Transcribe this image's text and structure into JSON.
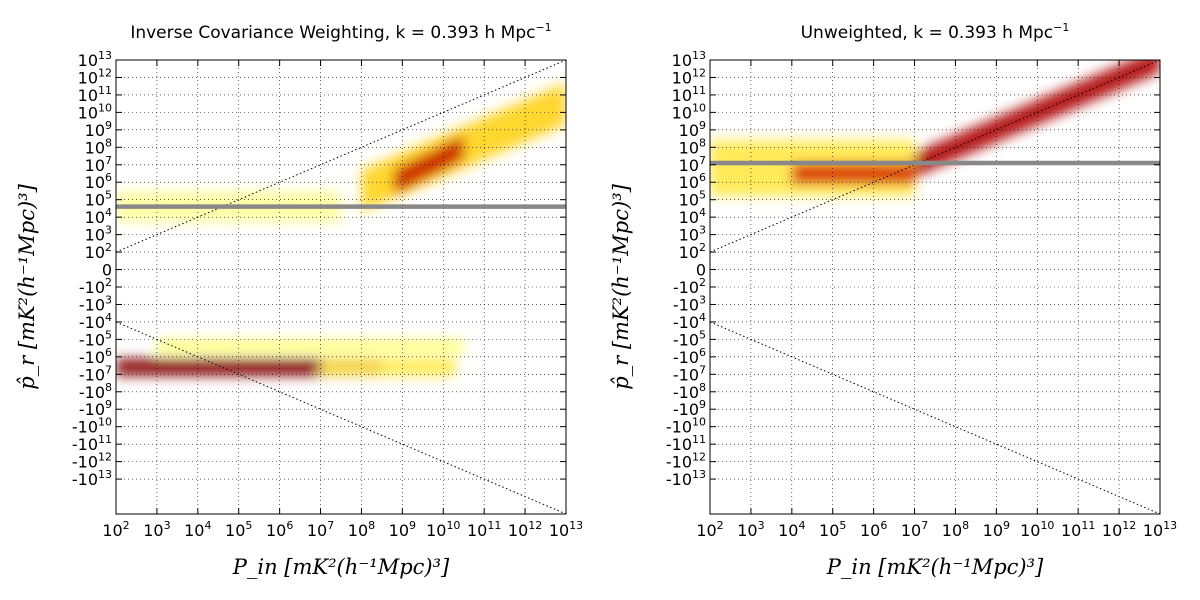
{
  "chart_data": [
    {
      "type": "heatmap",
      "title": "Inverse Covariance Weighting, k = 0.393 h Mpc",
      "title_sup": "−1",
      "xlabel": "P_in [mK²(h⁻¹Mpc)³]",
      "ylabel": "p̂_r [mK²(h⁻¹Mpc)³]",
      "x_ticks": [
        "10^2",
        "10^3",
        "10^4",
        "10^5",
        "10^6",
        "10^7",
        "10^8",
        "10^9",
        "10^10",
        "10^11",
        "10^12",
        "10^13"
      ],
      "y_ticks": [
        "10^13",
        "10^12",
        "10^11",
        "10^10",
        "10^9",
        "10^8",
        "10^7",
        "10^6",
        "10^5",
        "10^4",
        "10^3",
        "10^2",
        "0",
        "-10^2",
        "-10^3",
        "-10^4",
        "-10^5",
        "-10^6",
        "-10^7",
        "-10^8",
        "-10^9",
        "-10^10",
        "-10^11",
        "-10^12",
        "-10^13"
      ],
      "xlim_log10": [
        2,
        13
      ],
      "ylim_symlog10": [
        -13,
        13
      ],
      "grid": true,
      "noise_line_y": "4.6",
      "density": [
        {
          "x1": 2,
          "x2": 7.5,
          "y": 4.6,
          "spread": 0.9,
          "intensity": 0.18
        },
        {
          "x1": 8,
          "x2": 13,
          "y1": 5.5,
          "y2": 10.5,
          "spread": 1.2,
          "intensity": 0.45
        },
        {
          "x1": 8.8,
          "x2": 10.5,
          "y1": 6.0,
          "y2": 8.0,
          "spread": 0.7,
          "intensity": 0.85
        },
        {
          "x1": 2,
          "x2": 8.5,
          "y": -4.6,
          "spread": 0.5,
          "intensity": 0.95
        },
        {
          "x1": 3,
          "x2": 10.5,
          "y": -3.4,
          "spread": 0.4,
          "intensity": 0.25
        },
        {
          "x1": 7,
          "x2": 10.3,
          "y": -4.6,
          "spread": 0.5,
          "intensity": 0.35
        }
      ]
    },
    {
      "type": "heatmap",
      "title": "Unweighted, k = 0.393 h Mpc",
      "title_sup": "−1",
      "xlabel": "P_in [mK²(h⁻¹Mpc)³]",
      "ylabel": "p̂_r [mK²(h⁻¹Mpc)³]",
      "x_ticks": [
        "10^2",
        "10^3",
        "10^4",
        "10^5",
        "10^6",
        "10^7",
        "10^8",
        "10^9",
        "10^10",
        "10^11",
        "10^12",
        "10^13"
      ],
      "y_ticks": [
        "10^13",
        "10^12",
        "10^11",
        "10^10",
        "10^9",
        "10^8",
        "10^7",
        "10^6",
        "10^5",
        "10^4",
        "10^3",
        "10^2",
        "0",
        "-10^2",
        "-10^3",
        "-10^4",
        "-10^5",
        "-10^6",
        "-10^7",
        "-10^8",
        "-10^9",
        "-10^10",
        "-10^11",
        "-10^12",
        "-10^13"
      ],
      "xlim_log10": [
        2,
        13
      ],
      "ylim_symlog10": [
        -13,
        13
      ],
      "grid": true,
      "noise_line_y": "7.1",
      "density": [
        {
          "x1": 2,
          "x2": 7,
          "y": 6.8,
          "spread": 1.6,
          "intensity": 0.35
        },
        {
          "x1": 4,
          "x2": 7,
          "y": 6.5,
          "spread": 0.6,
          "intensity": 0.8
        },
        {
          "x1": 7,
          "x2": 13,
          "y1": 7.0,
          "y2": 13.0,
          "spread": 0.7,
          "intensity": 0.9
        }
      ]
    }
  ]
}
